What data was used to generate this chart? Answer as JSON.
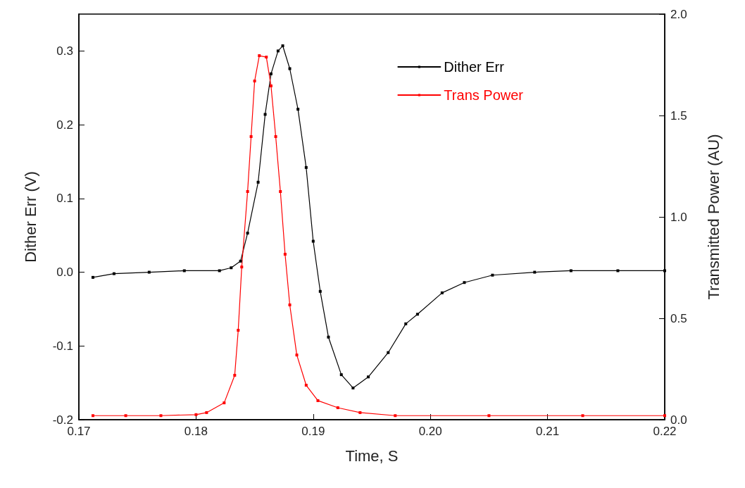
{
  "chart_data": {
    "type": "line",
    "xlabel": "Time, S",
    "ylabel": "Dither Err (V)",
    "y2label": "Transmitted Power (AU)",
    "xlim": [
      0.17,
      0.22
    ],
    "xticks": [
      0.17,
      0.18,
      0.19,
      {
        "value": 0.2,
        "label": "0.20"
      },
      0.21,
      0.22
    ],
    "ylim": [
      -0.2,
      0.35
    ],
    "yticks": [
      -0.2,
      -0.1,
      {
        "value": 0,
        "label": "0.0"
      },
      0.1,
      0.2,
      0.3
    ],
    "y2lim": [
      0,
      2
    ],
    "y2ticks": [
      {
        "value": 0,
        "label": "0.0"
      },
      0.5,
      {
        "value": 1,
        "label": "1.0"
      },
      1.5,
      {
        "value": 2,
        "label": "2.0"
      }
    ],
    "legend": "top right",
    "marker": "square",
    "line_style": "solid",
    "grid": false,
    "series": [
      {
        "name": "Dither Err",
        "color": "#000000",
        "x": [
          0.1712,
          0.173,
          0.176,
          0.179,
          0.182,
          0.183,
          0.1838,
          0.1844,
          0.1853,
          0.1859,
          0.1864,
          0.187,
          0.1874,
          0.188,
          0.1887,
          0.1894,
          0.19,
          0.1906,
          0.1913,
          0.1924,
          0.1934,
          0.1947,
          0.1964,
          0.1979,
          0.1989,
          0.201,
          0.2029,
          0.2053,
          0.2089,
          0.212,
          0.216,
          0.22
        ],
        "values": [
          -0.007,
          -0.002,
          0.0,
          0.002,
          0.002,
          0.006,
          0.015,
          0.053,
          0.122,
          0.214,
          0.269,
          0.3,
          0.307,
          0.276,
          0.221,
          0.142,
          0.042,
          -0.026,
          -0.088,
          -0.139,
          -0.157,
          -0.142,
          -0.109,
          -0.07,
          -0.057,
          -0.028,
          -0.014,
          -0.004,
          0.0,
          0.002,
          0.002,
          0.002
        ]
      },
      {
        "name": "Trans Power",
        "color": "#ff0000",
        "axis": "y2",
        "x": [
          0.1712,
          0.174,
          0.177,
          0.18,
          0.1809,
          0.1824,
          0.1833,
          0.1836,
          0.1839,
          0.1844,
          0.1847,
          0.185,
          0.1854,
          0.186,
          0.1864,
          0.1868,
          0.1872,
          0.1876,
          0.188,
          0.1886,
          0.1894,
          0.1904,
          0.1921,
          0.194,
          0.197,
          0.205,
          0.213,
          0.22
        ],
        "values": [
          0.02,
          0.02,
          0.02,
          0.025,
          0.035,
          0.083,
          0.219,
          0.441,
          0.753,
          1.125,
          1.396,
          1.67,
          1.795,
          1.788,
          1.646,
          1.396,
          1.125,
          0.816,
          0.566,
          0.319,
          0.17,
          0.094,
          0.059,
          0.035,
          0.02,
          0.02,
          0.02,
          0.02
        ]
      }
    ]
  }
}
